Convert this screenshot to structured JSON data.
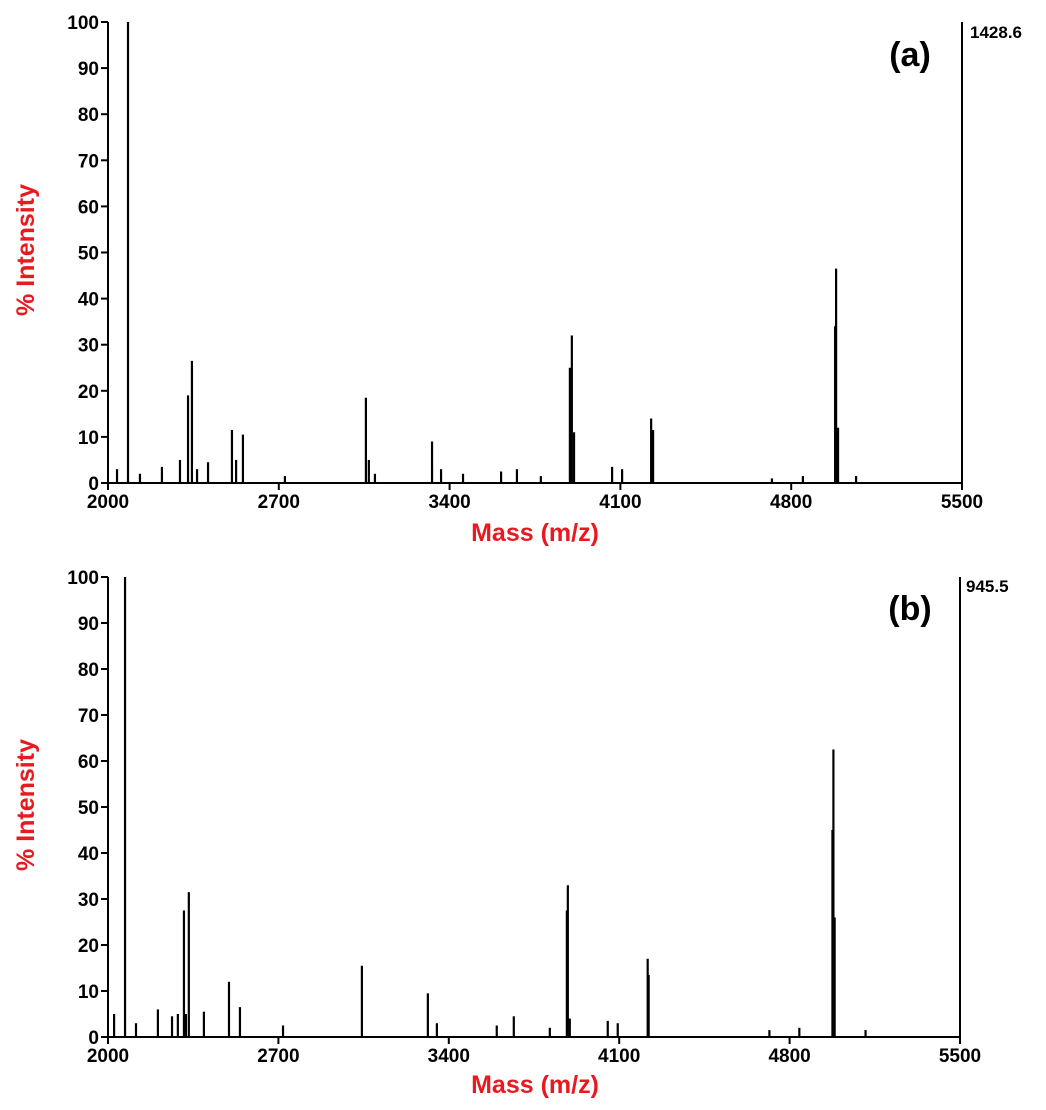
{
  "chart_data": [
    {
      "type": "stem",
      "panel_label": "(a)",
      "annotation": "1428.6",
      "xlabel": "Mass (m/z)",
      "ylabel": "% Intensity",
      "axis_label_color": "#e8191f",
      "color": "#000000",
      "xlim": [
        2000,
        5500
      ],
      "xticks": [
        2000,
        2700,
        3400,
        4100,
        4800,
        5500
      ],
      "ylim": [
        0,
        100
      ],
      "yticks": [
        0,
        10,
        20,
        30,
        40,
        50,
        60,
        70,
        80,
        90,
        100
      ],
      "x": [
        2037,
        2082,
        2131,
        2221,
        2295,
        2328,
        2344,
        2365,
        2410,
        2508,
        2525,
        2553,
        2725,
        3057,
        3069,
        3094,
        3328,
        3365,
        3455,
        3611,
        3676,
        3774,
        3893,
        3901,
        3910,
        4066,
        4107,
        4226,
        4234,
        4721,
        4848,
        4980,
        4984,
        4992,
        5066
      ],
      "values": [
        3,
        100,
        2,
        3.5,
        5,
        19,
        26.5,
        3,
        4.5,
        11.5,
        5,
        10.5,
        1.5,
        18.5,
        5,
        2,
        9,
        3,
        2,
        2.5,
        3,
        1.5,
        25,
        32,
        11,
        3.5,
        3,
        14,
        11.5,
        1,
        1.5,
        34,
        46.5,
        12,
        1.5
      ]
    },
    {
      "type": "stem",
      "panel_label": "(b)",
      "annotation": "945.5",
      "xlabel": "Mass (m/z)",
      "ylabel": "% Intensity",
      "axis_label_color": "#e8191f",
      "color": "#000000",
      "xlim": [
        2000,
        5500
      ],
      "xticks": [
        2000,
        2700,
        3400,
        4100,
        4800,
        5500
      ],
      "ylim": [
        0,
        100
      ],
      "yticks": [
        0,
        10,
        20,
        30,
        40,
        50,
        60,
        70,
        80,
        90,
        100
      ],
      "x": [
        2025,
        2070,
        2115,
        2205,
        2263,
        2287,
        2312,
        2320,
        2332,
        2394,
        2497,
        2542,
        2719,
        3043,
        3314,
        3351,
        3597,
        3667,
        3815,
        3885,
        3889,
        3897,
        4053,
        4094,
        4217,
        4221,
        4717,
        4840,
        4976,
        4980,
        4985,
        5112
      ],
      "values": [
        5,
        100,
        3,
        6,
        4.5,
        5,
        27.5,
        5,
        31.5,
        5.5,
        12,
        6.5,
        2.5,
        15.5,
        9.5,
        3,
        2.5,
        4.5,
        2,
        27.5,
        33,
        4,
        3.5,
        3,
        17,
        13.5,
        1.5,
        2,
        45,
        62.5,
        26,
        1.5
      ]
    }
  ]
}
